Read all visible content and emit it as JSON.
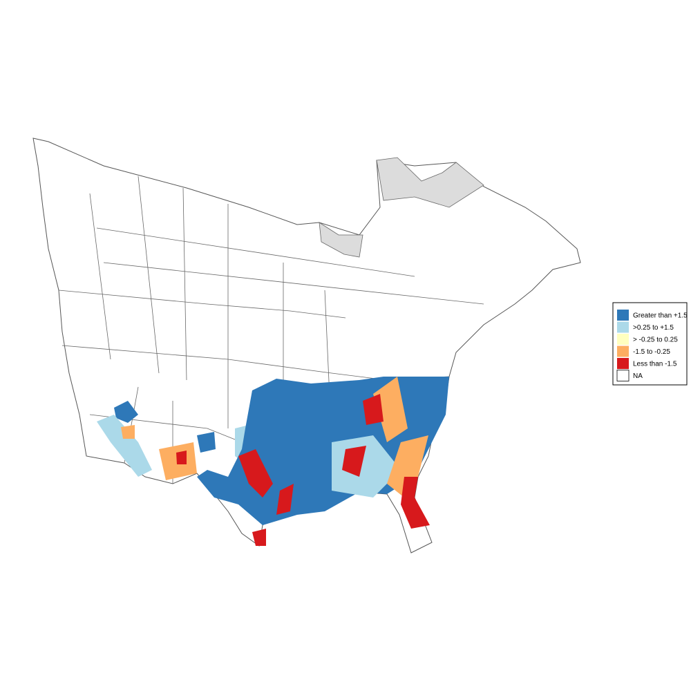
{
  "legend": {
    "items": [
      {
        "label": "Greater than +1.5",
        "color": "#2e78b8"
      },
      {
        "label": ">0.25 to +1.5",
        "color": "#abd9e9"
      },
      {
        "label": "> -0.25 to 0.25",
        "color": "#ffffbf"
      },
      {
        "label": "-1.5 to -0.25",
        "color": "#fdae61"
      },
      {
        "label": "Less than -1.5",
        "color": "#d7191c"
      },
      {
        "label": "NA",
        "color": "#ffffff"
      }
    ]
  }
}
